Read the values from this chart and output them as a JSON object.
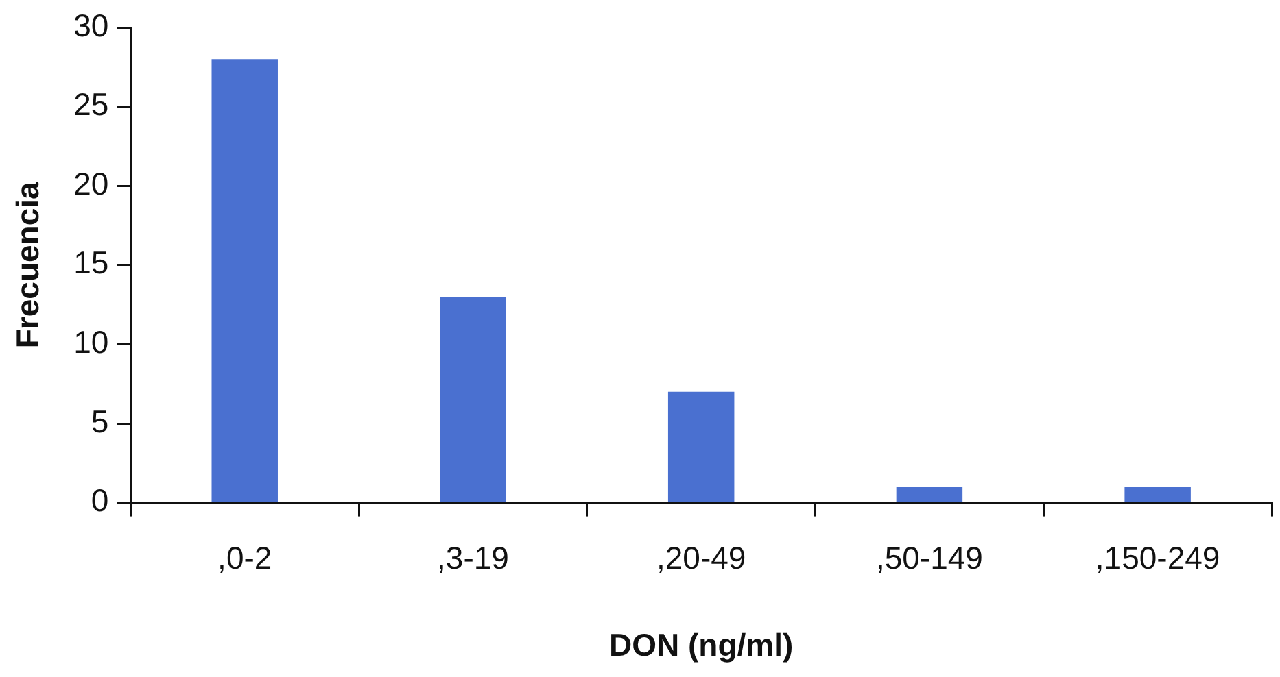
{
  "chart_data": {
    "type": "bar",
    "xlabel": "DON (ng/ml)",
    "ylabel": "Frecuencia",
    "categories": [
      ",0-2",
      ",3-19",
      ",20-49",
      ",50-149",
      ",150-249"
    ],
    "values": [
      28,
      13,
      7,
      1,
      1
    ],
    "color": "#4a70d0",
    "ylim": [
      0,
      30
    ],
    "yticks": [
      0,
      5,
      10,
      15,
      20,
      25,
      30
    ],
    "grid": false,
    "legend": false
  }
}
